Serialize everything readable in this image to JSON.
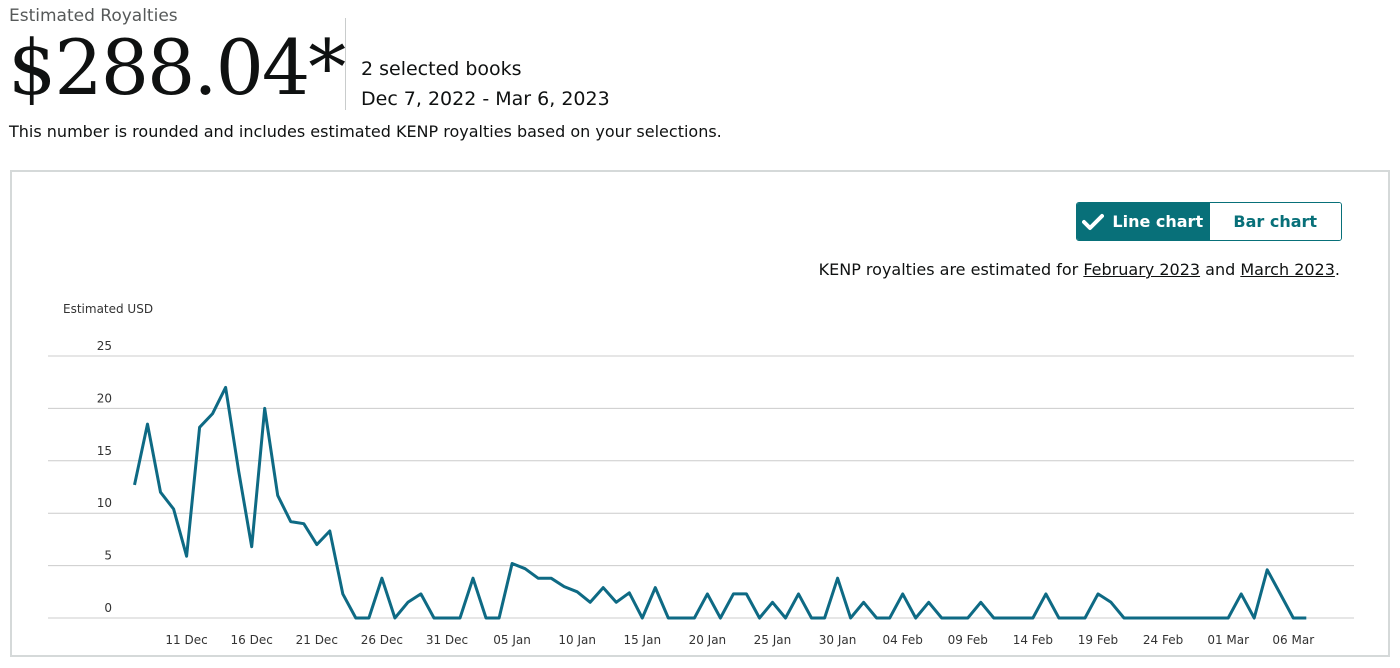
{
  "header": {
    "estimated_label": "Estimated Royalties",
    "amount": "$288.04*",
    "selected_books": "2 selected books",
    "date_range": "Dec 7, 2022 - Mar 6, 2023",
    "note": "This number is rounded and includes estimated KENP royalties based on your selections."
  },
  "toggle": {
    "line_label": "Line chart",
    "bar_label": "Bar chart",
    "active": "line"
  },
  "kenp_note": {
    "prefix": "KENP royalties are estimated for ",
    "link1": "February 2023",
    "middle": " and ",
    "link2": "March 2023",
    "suffix": "."
  },
  "colors": {
    "accent": "#087079",
    "line": "#0e6a84",
    "grid": "#cccccc"
  },
  "chart_data": {
    "type": "line",
    "ylabel": "Estimated USD",
    "ylim": [
      0,
      25
    ],
    "yticks": [
      0,
      5,
      10,
      15,
      20,
      25
    ],
    "grid": true,
    "x_start": "2022-12-07",
    "xtick_labels": [
      "11 Dec",
      "16 Dec",
      "21 Dec",
      "26 Dec",
      "31 Dec",
      "05 Jan",
      "10 Jan",
      "15 Jan",
      "20 Jan",
      "25 Jan",
      "30 Jan",
      "04 Feb",
      "09 Feb",
      "14 Feb",
      "19 Feb",
      "24 Feb",
      "01 Mar",
      "06 Mar"
    ],
    "xtick_day_index": [
      4,
      9,
      14,
      19,
      24,
      29,
      34,
      39,
      44,
      49,
      54,
      59,
      64,
      69,
      74,
      79,
      84,
      89
    ],
    "series": [
      {
        "name": "Estimated USD",
        "values": [
          12.7,
          18.5,
          12.0,
          10.4,
          5.9,
          18.2,
          19.5,
          22.0,
          14.0,
          6.8,
          20.0,
          11.7,
          9.2,
          9.0,
          7.0,
          8.3,
          2.3,
          0,
          0,
          3.8,
          0,
          1.5,
          2.3,
          0,
          0,
          0,
          3.8,
          0,
          0,
          5.2,
          4.7,
          3.8,
          3.8,
          3.0,
          2.5,
          1.5,
          2.9,
          1.5,
          2.4,
          0,
          2.9,
          0,
          0,
          0,
          2.3,
          0,
          2.3,
          2.3,
          0,
          1.5,
          0,
          2.3,
          0,
          0,
          3.8,
          0,
          1.5,
          0,
          0,
          2.3,
          0,
          1.5,
          0,
          0,
          0,
          1.5,
          0,
          0,
          0,
          0,
          2.3,
          0,
          0,
          0,
          2.3,
          1.5,
          0,
          0,
          0,
          0,
          0,
          0,
          0,
          0,
          0,
          2.3,
          0,
          4.6,
          2.3,
          0,
          0
        ]
      }
    ]
  }
}
